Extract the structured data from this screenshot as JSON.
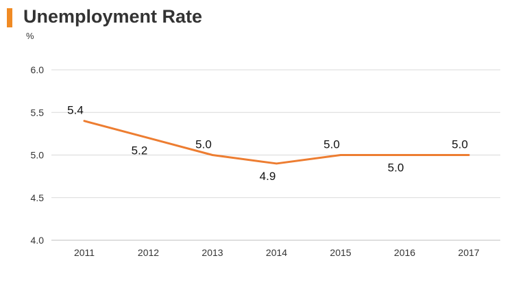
{
  "header": {
    "title": "Unemployment Rate",
    "unit": "%",
    "accent_color": "#f08a24"
  },
  "chart_data": {
    "type": "line",
    "title": "Unemployment Rate",
    "ylabel": "%",
    "xlabel": "",
    "categories": [
      "2011",
      "2012",
      "2013",
      "2014",
      "2015",
      "2016",
      "2017"
    ],
    "series": [
      {
        "values": [
          5.4,
          5.2,
          5.0,
          4.9,
          5.0,
          5.0,
          5.0
        ],
        "color": "#ed7d31"
      }
    ],
    "data_labels": [
      "5.4",
      "5.2",
      "5.0",
      "4.9",
      "5.0",
      "5.0",
      "5.0"
    ],
    "ylim": [
      4.0,
      6.0
    ],
    "yticks": [
      "4.0",
      "4.5",
      "5.0",
      "5.5",
      "6.0"
    ],
    "ytick_values": [
      4.0,
      4.5,
      5.0,
      5.5,
      6.0
    ],
    "grid": true,
    "legend": "none"
  }
}
